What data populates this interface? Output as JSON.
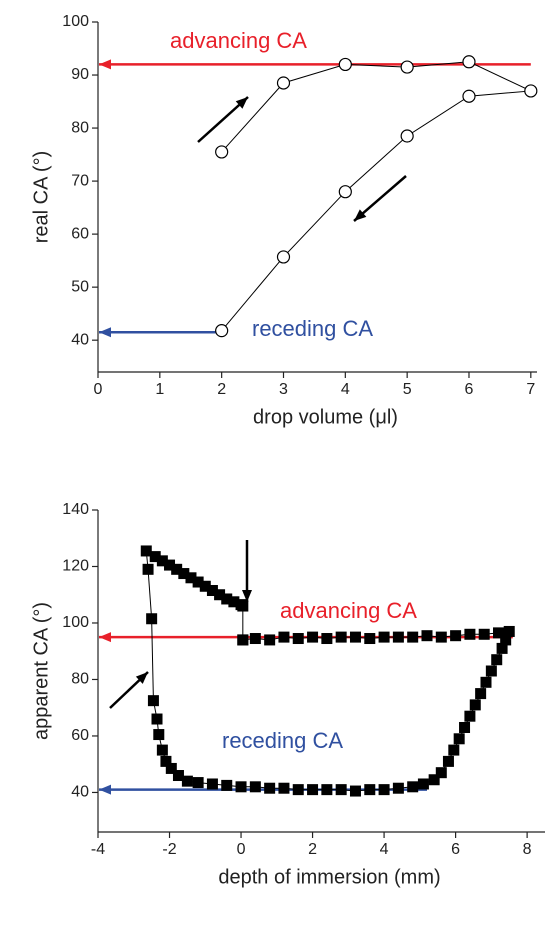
{
  "chart_data": [
    {
      "type": "line",
      "ylabel": "real CA (°)",
      "xlabel": "drop volume (μl)",
      "xlim": [
        0,
        7.1
      ],
      "xticks": [
        0,
        1,
        2,
        3,
        4,
        5,
        6,
        7
      ],
      "ylim": [
        34,
        100
      ],
      "yticks": [
        40,
        50,
        60,
        70,
        80,
        90,
        100
      ],
      "series": [
        {
          "color": "#000000",
          "marker": "open-circle",
          "x": [
            2,
            3,
            4,
            5,
            6,
            7,
            6,
            5,
            4,
            3,
            2
          ],
          "values": [
            75.5,
            88.5,
            92,
            91.5,
            92.5,
            87,
            86,
            78.5,
            68,
            55.7,
            41.8
          ]
        }
      ],
      "reference_lines": [
        {
          "label": "advancing CA",
          "value": 92,
          "x_end": 7,
          "color": "#e8202a"
        },
        {
          "label": "receding CA",
          "value": 41.5,
          "x_end": 2,
          "color": "#3050a0"
        }
      ]
    },
    {
      "type": "line",
      "ylabel": "apparent CA (°)",
      "xlabel": "depth of immersion (mm)",
      "xlim": [
        -4,
        8.5
      ],
      "xticks": [
        -4,
        -2,
        0,
        2,
        4,
        6,
        8
      ],
      "ylim": [
        26,
        140
      ],
      "yticks": [
        40,
        60,
        80,
        100,
        120,
        140
      ],
      "series": [
        {
          "color": "#000000",
          "marker": "filled-square",
          "x": [
            0.05,
            0.4,
            0.8,
            1.2,
            1.6,
            2,
            2.4,
            2.8,
            3.2,
            3.6,
            4,
            4.4,
            4.8,
            5.2,
            5.6,
            6,
            6.4,
            6.8,
            7.2,
            7.5,
            7.4,
            7.3,
            7.15,
            7,
            6.85,
            6.7,
            6.55,
            6.4,
            6.25,
            6.1,
            5.95,
            5.8,
            5.6,
            5.4,
            5.1,
            4.8,
            4.4,
            4,
            3.6,
            3.2,
            2.8,
            2.4,
            2,
            1.6,
            1.2,
            0.8,
            0.4,
            0,
            -0.4,
            -0.8,
            -1.2,
            -1.5,
            -1.75,
            -1.95,
            -2.1,
            -2.2,
            -2.3,
            -2.35,
            -2.45,
            -2.5,
            -2.6,
            -2.65,
            -2.4,
            -2.2,
            -2,
            -1.8,
            -1.6,
            -1.4,
            -1.2,
            -1,
            -0.8,
            -0.6,
            -0.4,
            -0.2,
            0,
            0.05,
            0.05
          ],
          "values": [
            94,
            94.5,
            94,
            95,
            94.5,
            95,
            94.5,
            95,
            95,
            94.5,
            95,
            95,
            95,
            95.5,
            95,
            95.5,
            96,
            96,
            96.5,
            97,
            94,
            91,
            87,
            83,
            79,
            75,
            71,
            67,
            63,
            59,
            55,
            51,
            47,
            44.5,
            43,
            42,
            41.5,
            41,
            41,
            40.5,
            41,
            41,
            41,
            41,
            41.5,
            41.5,
            42,
            42,
            42.5,
            43,
            43.5,
            44,
            46,
            48.5,
            51,
            55,
            60.5,
            66,
            72.5,
            101.5,
            119,
            125.5,
            123.5,
            122,
            120.5,
            119,
            117.5,
            116,
            114.5,
            113,
            111.5,
            110,
            108.5,
            107.5,
            106.5,
            106,
            94
          ]
        }
      ],
      "reference_lines": [
        {
          "label": "advancing CA",
          "value": 95,
          "x_end": 7.6,
          "color": "#e8202a"
        },
        {
          "label": "receding CA",
          "value": 41,
          "x_end": 5.2,
          "color": "#3050a0"
        }
      ]
    }
  ]
}
